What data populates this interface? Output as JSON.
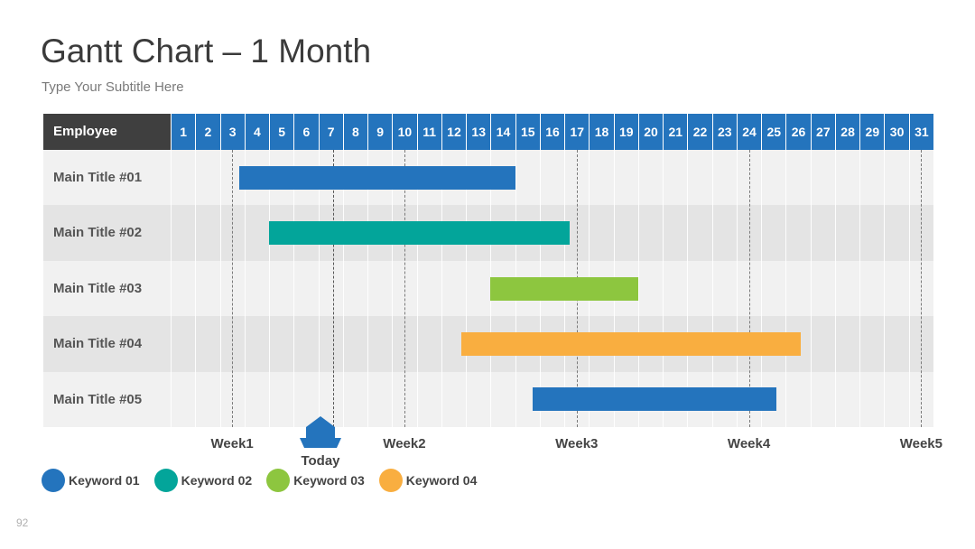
{
  "page": {
    "title": "Gantt Chart – 1 Month",
    "subtitle": "Type Your Subtitle Here",
    "page_number": "92"
  },
  "colors": {
    "header_blue": "#2474bd",
    "header_dark": "#3f3f3f",
    "row_light": "#f1f1f1",
    "row_dark": "#e4e4e4",
    "keyword_01": "#2474bd",
    "keyword_02": "#03a59a",
    "keyword_03": "#8dc63f",
    "keyword_04": "#f9ae40"
  },
  "chart_data": {
    "type": "gantt",
    "header_label": "Employee",
    "days": [
      "1",
      "2",
      "3",
      "4",
      "5",
      "6",
      "7",
      "8",
      "9",
      "10",
      "11",
      "12",
      "13",
      "14",
      "15",
      "16",
      "17",
      "18",
      "19",
      "20",
      "21",
      "22",
      "23",
      "24",
      "25",
      "26",
      "27",
      "28",
      "29",
      "30",
      "31"
    ],
    "tasks": [
      {
        "label": "Main Title #01",
        "start": 3.8,
        "end": 15.0,
        "keyword": "Keyword 01"
      },
      {
        "label": "Main Title #02",
        "start": 5.0,
        "end": 17.2,
        "keyword": "Keyword 02"
      },
      {
        "label": "Main Title #03",
        "start": 14.0,
        "end": 20.0,
        "keyword": "Keyword 03"
      },
      {
        "label": "Main Title #04",
        "start": 12.8,
        "end": 26.6,
        "keyword": "Keyword 04"
      },
      {
        "label": "Main Title #05",
        "start": 15.7,
        "end": 25.6,
        "keyword": "Keyword 01"
      }
    ],
    "weeks": [
      {
        "label": "Week1",
        "day": 3
      },
      {
        "label": "Week2",
        "day": 10
      },
      {
        "label": "Week3",
        "day": 17
      },
      {
        "label": "Week4",
        "day": 24
      },
      {
        "label": "Week5",
        "day": 31
      }
    ],
    "today": {
      "label": "Today",
      "day": 7.1
    },
    "legend": [
      {
        "label": "Keyword 01",
        "color": "#2474bd"
      },
      {
        "label": "Keyword 02",
        "color": "#03a59a"
      },
      {
        "label": "Keyword 03",
        "color": "#8dc63f"
      },
      {
        "label": "Keyword 04",
        "color": "#f9ae40"
      }
    ]
  }
}
